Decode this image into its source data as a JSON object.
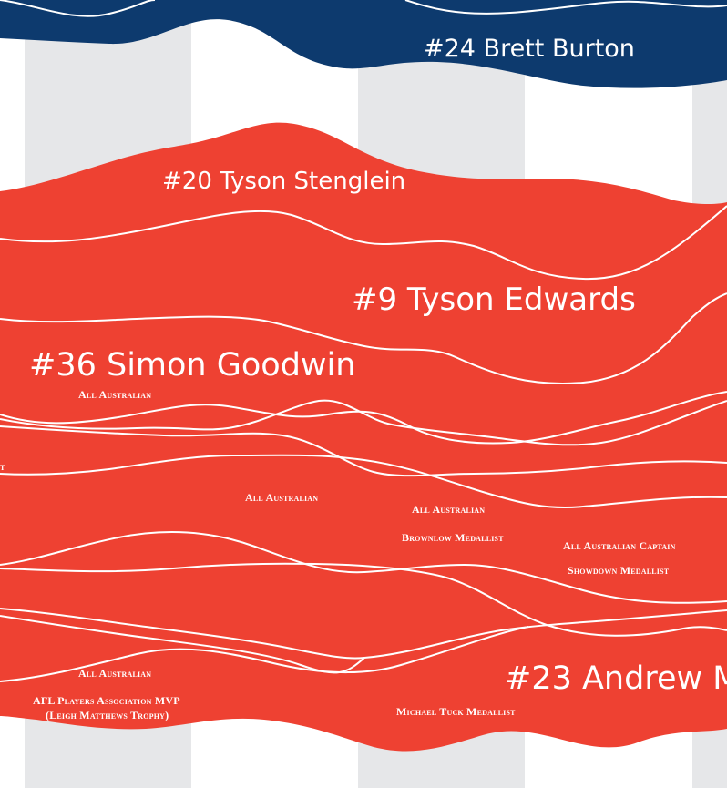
{
  "colors": {
    "background": "#ffffff",
    "column_band": "#e6e7e9",
    "blue_team": "#0d3a6e",
    "red_team": "#ee4132",
    "stream_line": "#ffffff"
  },
  "players": [
    {
      "label": "#24 Brett Burton",
      "team": "blue"
    },
    {
      "label": "#20 Tyson Stenglein",
      "team": "red"
    },
    {
      "label": "#9 Tyson Edwards",
      "team": "red"
    },
    {
      "label": "#36 Simon Goodwin",
      "team": "red"
    },
    {
      "label": "#23 Andrew M",
      "team": "red"
    }
  ],
  "awards": [
    "All Australian",
    "All Australian",
    "All Australian",
    "Brownlow Medallist",
    "All Australian Captain",
    "Showdown Medallist",
    "All Australian",
    "AFL Players Association MVP",
    "(Leigh Matthews Trophy)",
    "Michael Tuck Medallist",
    "t"
  ]
}
